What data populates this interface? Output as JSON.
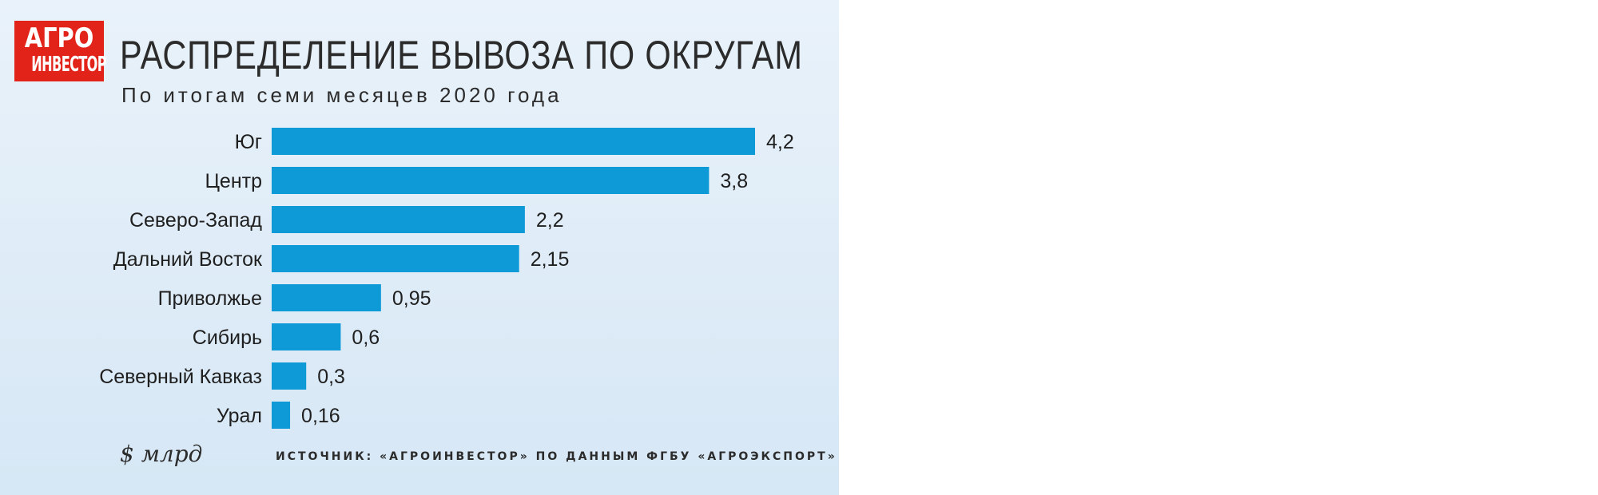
{
  "logo": {
    "line1": "АГРО",
    "line2": "ИНВЕСТОР"
  },
  "header": {
    "title": "РАСПРЕДЕЛЕНИЕ ВЫВОЗА ПО ОКРУГАМ",
    "subtitle": "По итогам семи месяцев 2020 года"
  },
  "footer": {
    "unit": "$ млрд",
    "source": "ИСТОЧНИК: «АГРОИНВЕСТОР» ПО ДАННЫМ ФГБУ «АГРОЭКСПОРТ»"
  },
  "colors": {
    "bar": "#0e9ad7",
    "logo": "#e2231a",
    "background": "#e3eef8"
  },
  "chart_data": {
    "type": "bar",
    "orientation": "horizontal",
    "title": "РАСПРЕДЕЛЕНИЕ ВЫВОЗА ПО ОКРУГАМ",
    "subtitle": "По итогам семи месяцев 2020 года",
    "categories": [
      "Юг",
      "Центр",
      "Северо-Запад",
      "Дальний Восток",
      "Приволжье",
      "Сибирь",
      "Северный Кавказ",
      "Урал"
    ],
    "values": [
      4.2,
      3.8,
      2.2,
      2.15,
      0.95,
      0.6,
      0.3,
      0.16
    ],
    "value_labels": [
      "4,2",
      "3,8",
      "2,2",
      "2,15",
      "0,95",
      "0,6",
      "0,3",
      "0,16"
    ],
    "unit": "$ млрд",
    "xlim": [
      0,
      4.2
    ],
    "grid": false,
    "legend": "none"
  }
}
